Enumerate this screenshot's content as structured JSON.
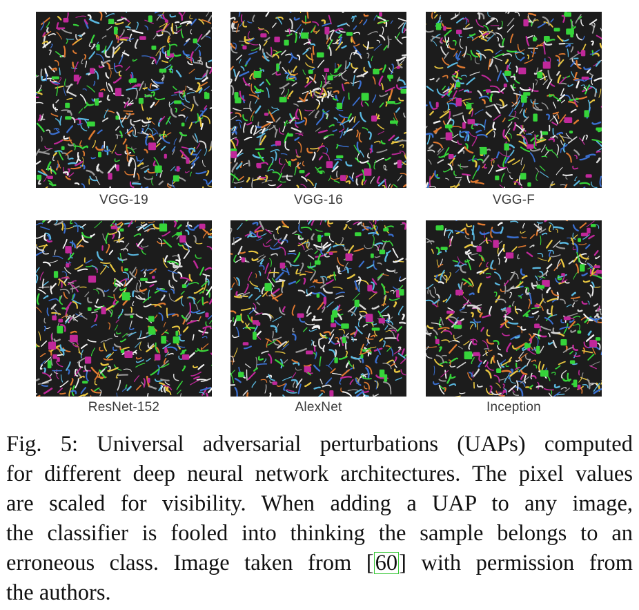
{
  "panels": [
    {
      "name": "VGG-19"
    },
    {
      "name": "VGG-16"
    },
    {
      "name": "VGG-F"
    },
    {
      "name": "ResNet-152"
    },
    {
      "name": "AlexNet"
    },
    {
      "name": "Inception"
    }
  ],
  "caption": {
    "line1": "Fig. 5: Universal adversarial perturbations (UAPs) computed",
    "line2": "for different deep neural network architectures. The pixel values",
    "line3": "are scaled for visibility. When adding a UAP to any image,",
    "line4": "the classifier is fooled into thinking the sample belongs to an",
    "line5_pre": "erroneous class. Image taken from [",
    "citation": "60",
    "line5_post": "] with permission from",
    "line6": "the authors."
  },
  "colors": {
    "citation_box": "#38c838",
    "patch_green": "#36d43a",
    "patch_magenta": "#c0289a",
    "stroke_orange": "#e07a30",
    "stroke_cyan": "#5ab8e0"
  }
}
